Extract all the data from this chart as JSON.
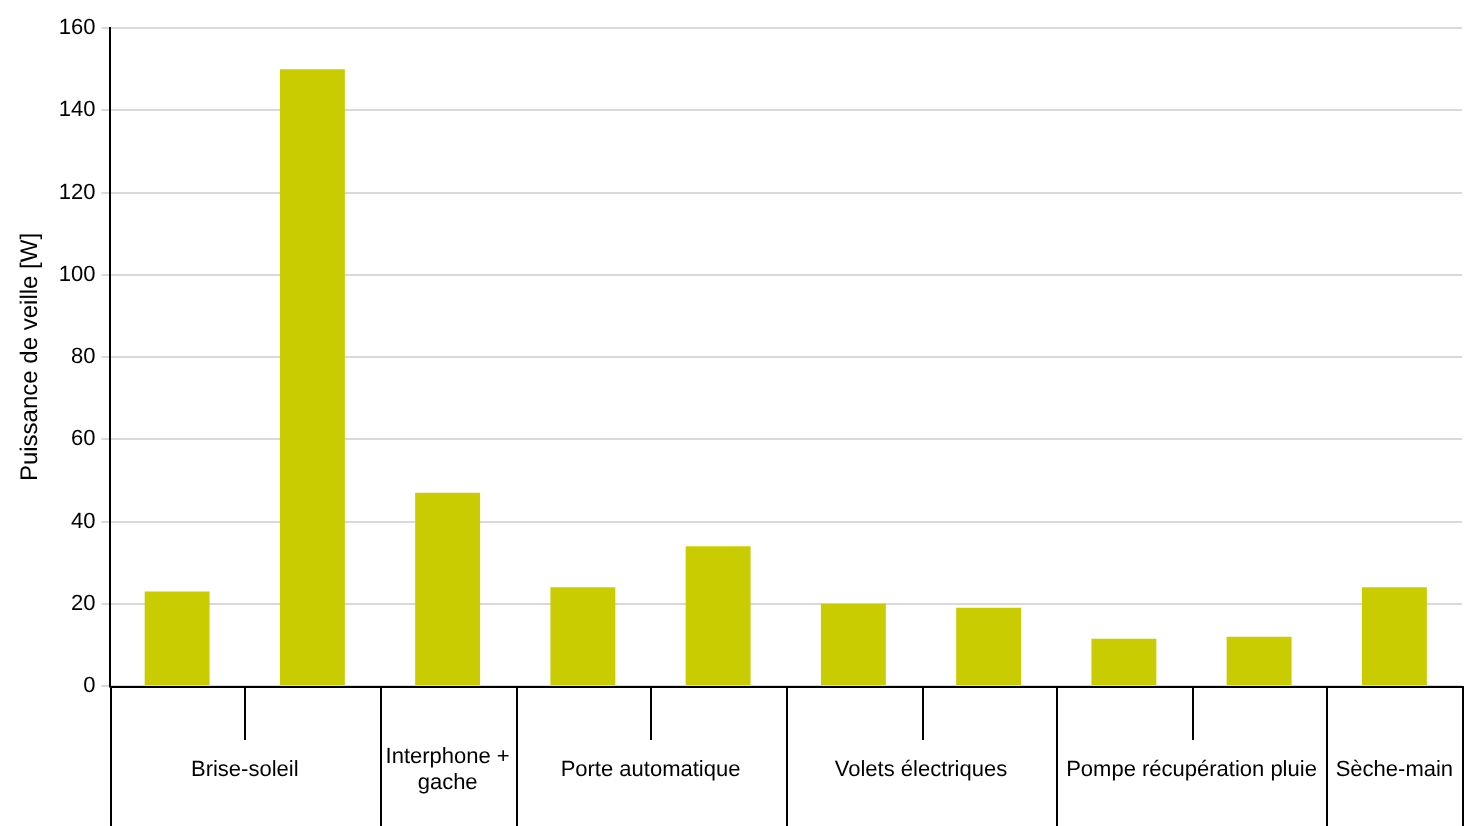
{
  "chart_data": {
    "type": "bar",
    "ylabel": "Puissance de veille [W]",
    "categories": [
      "Brise-soleil",
      null,
      "Interphone + gache",
      "Porte automatique",
      null,
      "Volets électriques",
      null,
      "Pompe récupération pluie",
      null,
      "Sèche-main"
    ],
    "values": [
      23,
      150,
      47,
      24,
      34,
      20,
      19,
      11.5,
      12,
      24
    ],
    "color": "#c8cc00",
    "ylim": [
      0,
      160
    ],
    "yticks": [
      0,
      20,
      40,
      60,
      80,
      100,
      120,
      140,
      160
    ],
    "grid": "y",
    "legend": false
  }
}
